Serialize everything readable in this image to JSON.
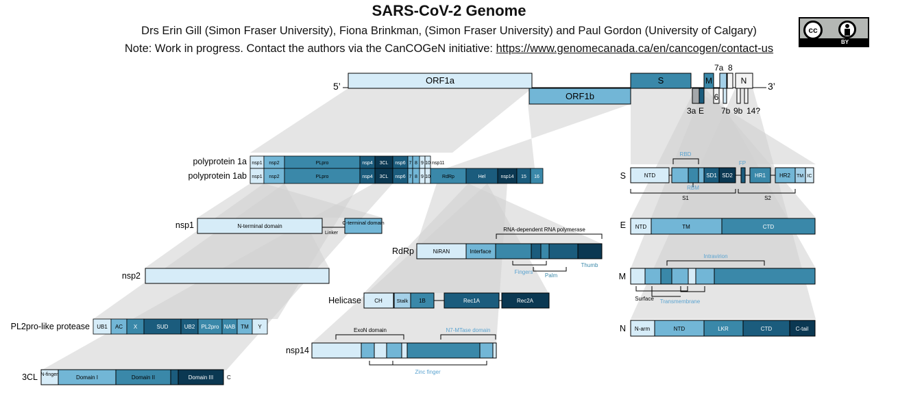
{
  "header": {
    "title": "SARS-CoV-2 Genome",
    "authors": "Drs Erin Gill (Simon Fraser University), Fiona Brinkman, (Simon Fraser University) and Paul Gordon (University of Calgary)",
    "note_prefix": "Note: Work in progress. Contact the authors via the CanCOGeN initiative: ",
    "note_link": "https://www.genomecanada.ca/en/cancogen/contact-us"
  },
  "license": {
    "cc": "cc",
    "by": "BY",
    "icons": [
      "cc-icon",
      "person-icon"
    ]
  },
  "colors": {
    "c1": "#d6ecf8",
    "c2": "#a4d0e8",
    "c3": "#72b6d6",
    "c4": "#3a88a9",
    "c5": "#1b5c7d",
    "c6": "#0b3852",
    "shade": "#cfcfcf",
    "blue_text": "#5aa3d0"
  },
  "genome": {
    "five": "5’",
    "three": "3’",
    "orf1a": "ORF1a",
    "orf1b": "ORF1b",
    "s": "S",
    "m": "M",
    "n": "N",
    "six": "6",
    "orf7a": "7a",
    "orf8": "8",
    "orf3a": "3a",
    "e": "E",
    "orf7b": "7b",
    "orf9b": "9b",
    "orf14": "14?"
  },
  "polyprotein": {
    "label_1a": "polyprotein 1a",
    "label_1ab": "polyprotein 1ab",
    "row_1a": [
      "nsp1",
      "nsp2",
      "PLpro",
      "nsp4",
      "3CL",
      "nsp6",
      "7",
      "8",
      "9",
      "10",
      "nsp11"
    ],
    "row_1ab": [
      "nsp1",
      "nsp2",
      "PLpro",
      "nsp4",
      "3CL",
      "nsp6",
      "7",
      "8",
      "9",
      "10",
      "RdRp",
      "Hel",
      "nsp14",
      "15",
      "16"
    ]
  },
  "nsp1": {
    "label": "nsp1",
    "ntd": "N-terminal domain",
    "linker": "Linker",
    "ctd": "C-terminal domain"
  },
  "nsp2": {
    "label": "nsp2"
  },
  "pl2pro": {
    "label": "PL2pro-like protease",
    "domains": [
      "UB1",
      "AC",
      "X",
      "SUD",
      "UB2",
      "PL2pro",
      "NAB",
      "TM",
      "Y"
    ]
  },
  "cl3": {
    "label": "3CL",
    "domains": [
      "N-finger",
      "Domain I",
      "Domain II",
      "Domain III"
    ],
    "c": "C"
  },
  "rdrp": {
    "label": "RdRp",
    "top": "RNA-dependent RNA polymerase",
    "domains": [
      "NiRAN",
      "Interface"
    ],
    "thumb": "Thumb",
    "fingers": "Fingers",
    "palm": "Palm"
  },
  "helicase": {
    "label": "Helicase",
    "domains": [
      "CH",
      "Stalk",
      "1B",
      "Rec1A",
      "Rec2A"
    ]
  },
  "nsp14": {
    "label": "nsp14",
    "exon": "ExoN domain",
    "n7": "N7-MTase domain",
    "zinc": "Zinc finger"
  },
  "spike": {
    "label": "S",
    "domains": [
      "NTD",
      "SD1",
      "SD2",
      "HR1",
      "HR2",
      "TM",
      "IC"
    ],
    "rbd": "RBD",
    "rbm": "RBM",
    "fp": "FP",
    "s1": "S1",
    "s2": "S2"
  },
  "envelope": {
    "label": "E",
    "domains": [
      "NTD",
      "TM",
      "CTD"
    ]
  },
  "membrane": {
    "label": "M",
    "intravirion": "Intravirion",
    "surface": "Surface",
    "transmembrane": "Transmembrane"
  },
  "nucleocapsid": {
    "label": "N",
    "domains": [
      "N-arm",
      "NTD",
      "LKR",
      "CTD",
      "C-tail"
    ]
  }
}
